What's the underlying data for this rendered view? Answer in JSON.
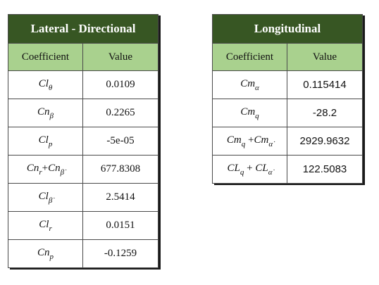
{
  "lateral": {
    "title": "Lateral - Directional",
    "col_coefficient": "Coefficient",
    "col_value": "Value",
    "rows": [
      {
        "coef_base": "Cl",
        "coef_sub": "θ",
        "value": "0.0109"
      },
      {
        "coef_base": "Cn",
        "coef_sub": "β",
        "value": "0.2265"
      },
      {
        "coef_base": "Cl",
        "coef_sub": "p",
        "value": "-5e-05"
      },
      {
        "coef_base": "Cn",
        "coef_sub": "r",
        "coef_op": "+",
        "coef_base2": "Cn",
        "coef_sub2": "β̇",
        "value": "677.8308"
      },
      {
        "coef_base": "Cl",
        "coef_sub": "β̇",
        "value": "2.5414"
      },
      {
        "coef_base": "Cl",
        "coef_sub": "r",
        "value": "0.0151"
      },
      {
        "coef_base": "Cn",
        "coef_sub": "p",
        "value": "-0.1259"
      }
    ]
  },
  "longitudinal": {
    "title": "Longitudinal",
    "col_coefficient": "Coefficient",
    "col_value": "Value",
    "rows": [
      {
        "coef_base": "Cm",
        "coef_sub": "α",
        "value": "0.115414"
      },
      {
        "coef_base": "Cm",
        "coef_sub": "q",
        "value": "-28.2"
      },
      {
        "coef_base": "Cm",
        "coef_sub": "q",
        "coef_op": " +",
        "coef_base2": "Cm",
        "coef_sub2": "α̇",
        "value": "2929.9632"
      },
      {
        "coef_base": "CL",
        "coef_sub": "q",
        "coef_op": " + ",
        "coef_base2": "CL",
        "coef_sub2": "α̇",
        "value": "122.5083"
      }
    ]
  }
}
